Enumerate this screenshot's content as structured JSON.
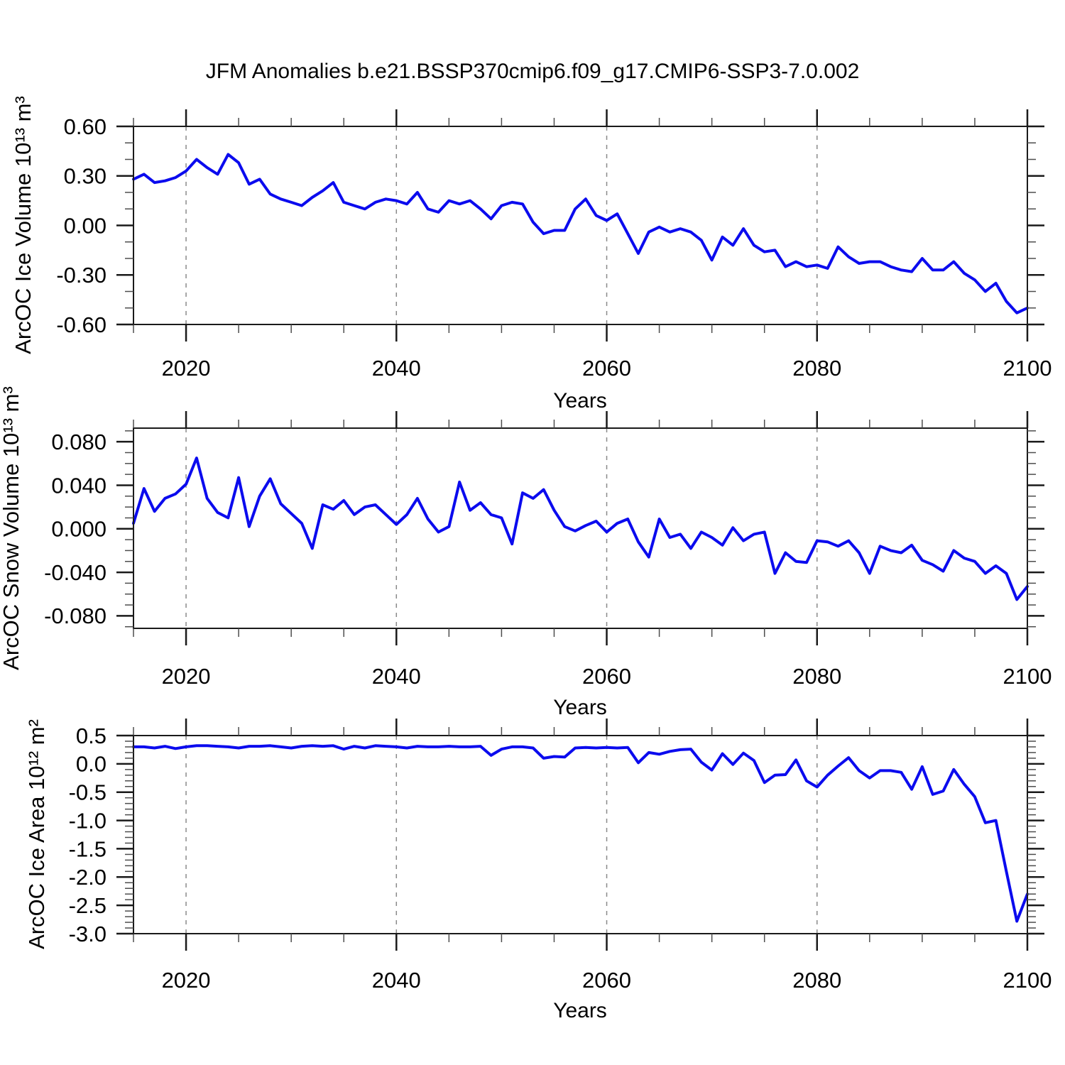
{
  "title": "JFM Anomalies b.e21.BSSP370cmip6.f09_g17.CMIP6-SSP3-7.0.002",
  "colors": {
    "line": "#0b0bee",
    "axis": "#1a1a1a",
    "minor_tick": "#4d4d4d",
    "grid": "#8a8a8a",
    "text": "#000000"
  },
  "axis": {
    "x_range": [
      2015,
      2100
    ],
    "xtick_values": [
      2020,
      2040,
      2060,
      2080,
      2100
    ],
    "xtick_labels": [
      "2020",
      "2040",
      "2060",
      "2080",
      "2100"
    ],
    "x_minor_step": 5,
    "grid_years": [
      2020,
      2040,
      2060,
      2080
    ],
    "grid_style": "dashed"
  },
  "chart_data": [
    {
      "type": "line",
      "series_name": "ArcOC Ice Volume anomaly",
      "ylabel": "ArcOC Ice Volume 10¹³ m³",
      "xlabel": "Years",
      "ylim": [
        -0.6,
        0.6
      ],
      "ytick_values": [
        0.6,
        0.3,
        0.0,
        -0.3,
        -0.6
      ],
      "ytick_labels": [
        "0.60",
        "0.30",
        "0.00",
        "-0.30",
        "-0.60"
      ],
      "y_minor_step": 0.1,
      "x_start": 2015,
      "x_step": 1,
      "values": [
        0.28,
        0.31,
        0.26,
        0.27,
        0.29,
        0.33,
        0.4,
        0.35,
        0.31,
        0.43,
        0.38,
        0.25,
        0.28,
        0.19,
        0.16,
        0.14,
        0.12,
        0.17,
        0.21,
        0.26,
        0.14,
        0.12,
        0.1,
        0.14,
        0.16,
        0.15,
        0.13,
        0.2,
        0.1,
        0.08,
        0.15,
        0.13,
        0.15,
        0.1,
        0.04,
        0.12,
        0.14,
        0.13,
        0.02,
        -0.05,
        -0.03,
        -0.03,
        0.1,
        0.16,
        0.06,
        0.03,
        0.07,
        -0.05,
        -0.17,
        -0.04,
        -0.01,
        -0.04,
        -0.02,
        -0.04,
        -0.09,
        -0.21,
        -0.07,
        -0.12,
        -0.02,
        -0.12,
        -0.16,
        -0.15,
        -0.25,
        -0.22,
        -0.25,
        -0.24,
        -0.26,
        -0.13,
        -0.19,
        -0.23,
        -0.22,
        -0.22,
        -0.25,
        -0.27,
        -0.28,
        -0.2,
        -0.27,
        -0.27,
        -0.22,
        -0.29,
        -0.33,
        -0.4,
        -0.35,
        -0.46,
        -0.53,
        -0.5
      ]
    },
    {
      "type": "line",
      "series_name": "ArcOC Snow Volume anomaly",
      "ylabel": "ArcOC Snow Volume 10¹³ m³",
      "xlabel": "Years",
      "ylim": [
        -0.0915,
        0.0925
      ],
      "ytick_values": [
        0.08,
        0.04,
        0.0,
        -0.04,
        -0.08
      ],
      "ytick_labels": [
        "0.080",
        "0.040",
        "0.000",
        "-0.040",
        "-0.080"
      ],
      "y_minor_step": 0.01,
      "x_start": 2015,
      "x_step": 1,
      "values": [
        0.005,
        0.037,
        0.016,
        0.028,
        0.032,
        0.041,
        0.065,
        0.028,
        0.015,
        0.01,
        0.047,
        0.002,
        0.03,
        0.046,
        0.023,
        0.014,
        0.005,
        -0.018,
        0.022,
        0.018,
        0.026,
        0.013,
        0.02,
        0.022,
        0.013,
        0.004,
        0.013,
        0.028,
        0.009,
        -0.003,
        0.002,
        0.043,
        0.017,
        0.024,
        0.013,
        0.01,
        -0.014,
        0.033,
        0.028,
        0.036,
        0.017,
        0.002,
        -0.002,
        0.003,
        0.007,
        -0.003,
        0.005,
        0.009,
        -0.012,
        -0.026,
        0.009,
        -0.008,
        -0.005,
        -0.018,
        -0.003,
        -0.008,
        -0.015,
        0.001,
        -0.011,
        -0.005,
        -0.003,
        -0.041,
        -0.022,
        -0.03,
        -0.031,
        -0.011,
        -0.012,
        -0.016,
        -0.011,
        -0.022,
        -0.041,
        -0.016,
        -0.02,
        -0.022,
        -0.015,
        -0.029,
        -0.033,
        -0.039,
        -0.02,
        -0.027,
        -0.03,
        -0.041,
        -0.034,
        -0.041,
        -0.065,
        -0.053
      ]
    },
    {
      "type": "line",
      "series_name": "ArcOC Ice Area anomaly",
      "ylabel": "ArcOC Ice Area 10¹² m²",
      "xlabel": "Years",
      "ylim": [
        -3.0,
        0.5
      ],
      "ytick_values": [
        0.5,
        0.0,
        -0.5,
        -1.0,
        -1.5,
        -2.0,
        -2.5,
        -3.0
      ],
      "ytick_labels": [
        "0.5",
        "0.0",
        "-0.5",
        "-1.0",
        "-1.5",
        "-2.0",
        "-2.5",
        "-3.0"
      ],
      "y_minor_step": 0.1,
      "x_start": 2015,
      "x_step": 1,
      "values": [
        0.3,
        0.3,
        0.28,
        0.31,
        0.27,
        0.3,
        0.32,
        0.32,
        0.31,
        0.3,
        0.28,
        0.31,
        0.31,
        0.32,
        0.3,
        0.28,
        0.31,
        0.32,
        0.31,
        0.32,
        0.26,
        0.31,
        0.28,
        0.32,
        0.31,
        0.3,
        0.28,
        0.31,
        0.3,
        0.3,
        0.31,
        0.3,
        0.3,
        0.31,
        0.15,
        0.26,
        0.3,
        0.3,
        0.28,
        0.1,
        0.13,
        0.12,
        0.28,
        0.29,
        0.28,
        0.29,
        0.28,
        0.29,
        0.02,
        0.2,
        0.17,
        0.22,
        0.25,
        0.26,
        0.03,
        -0.11,
        0.18,
        -0.01,
        0.19,
        0.06,
        -0.33,
        -0.2,
        -0.19,
        0.07,
        -0.3,
        -0.41,
        -0.2,
        -0.04,
        0.11,
        -0.12,
        -0.25,
        -0.12,
        -0.12,
        -0.15,
        -0.45,
        -0.05,
        -0.54,
        -0.48,
        -0.1,
        -0.36,
        -0.58,
        -1.04,
        -1.0,
        -1.9,
        -2.78,
        -2.3
      ]
    }
  ]
}
